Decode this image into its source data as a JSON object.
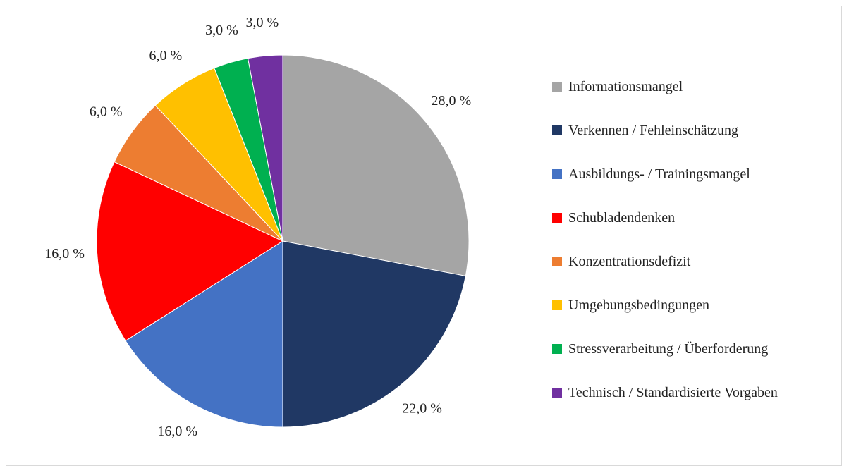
{
  "chart_data": {
    "type": "pie",
    "categories": [
      "Informationsmangel",
      "Verkennen / Fehleinschätzung",
      "Ausbildungs- / Trainingsmangel",
      "Schubladendenken",
      "Konzentrationsdefizit",
      "Umgebungsbedingungen",
      "Stressverarbeitung / Überforderung",
      "Technisch / Standardisierte Vorgaben"
    ],
    "values": [
      28,
      22,
      16,
      16,
      6,
      6,
      3,
      3
    ],
    "value_labels": [
      "28,0 %",
      "22,0 %",
      "16,0 %",
      "16,0 %",
      "6,0 %",
      "6,0 %",
      "3,0 %",
      "3,0 %"
    ],
    "colors": [
      "#a5a5a5",
      "#203864",
      "#4472c4",
      "#ff0000",
      "#ed7d31",
      "#ffc000",
      "#00b050",
      "#7030a0"
    ],
    "legend": "right"
  }
}
